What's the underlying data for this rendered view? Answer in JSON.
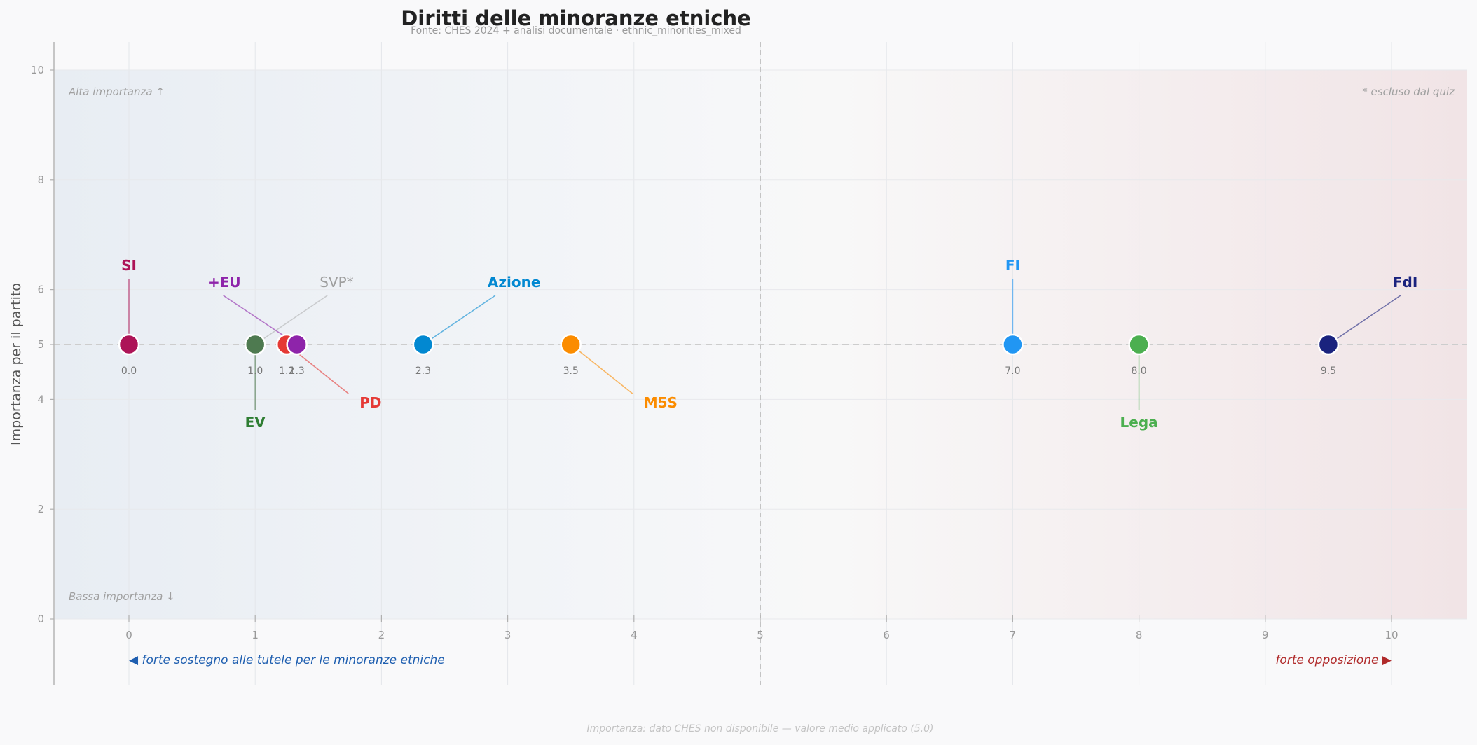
{
  "chart_data": {
    "type": "scatter",
    "title": "Diritti delle minoranze etniche",
    "subtitle": "Fonte: CHES 2024 + analisi documentale  ·  ethnic_minorities_mixed",
    "xlabel": "",
    "ylabel": "Importanza per il partito",
    "xlim": [
      -0.6,
      10.6
    ],
    "ylim": [
      0,
      10
    ],
    "x_ticks": [
      "0",
      "1",
      "2",
      "3",
      "4",
      "5",
      "6",
      "7",
      "8",
      "9",
      "10"
    ],
    "y_ticks": [
      "0",
      "2",
      "4",
      "5",
      "6",
      "8",
      "10"
    ],
    "grid": true,
    "reference_lines": {
      "x": 5,
      "y": 5
    },
    "corner_labels": {
      "top_left": "Alta importanza ↑",
      "bottom_left": "Bassa importanza ↓",
      "top_right": "* escluso dal quiz"
    },
    "axis_hints": {
      "left": "◀  forte sostegno alle tutele per le minoranze etniche",
      "right": "forte opposizione  ▶"
    },
    "footnote": "Importanza: dato CHES non disponibile — valore medio applicato (5.0)",
    "colors": {
      "left_region": "#e8edf3",
      "right_region": "#f1e4e6",
      "accent_left": "#1f5fb0",
      "accent_right": "#b02a2a"
    },
    "points": [
      {
        "name": "SI",
        "x": 0.0,
        "y": 5,
        "value_label": "0.0",
        "color": "#ad1457",
        "label_pos": "above"
      },
      {
        "name": "EV",
        "x": 1.0,
        "y": 5,
        "value_label": "1.0",
        "color": "#4e7a50",
        "label_color": "#2e7d32",
        "label_pos": "below"
      },
      {
        "name": "PD",
        "x": 1.25,
        "y": 5,
        "value_label": "1.2",
        "color": "#e53935",
        "label_pos": "lower-right"
      },
      {
        "name": "+EU",
        "x": 1.33,
        "y": 5,
        "value_label": "1.3",
        "color": "#8e24aa",
        "label_pos": "upper-left"
      },
      {
        "name": "SVP*",
        "x": 1.0,
        "y": 5,
        "value_label": "",
        "color": "#9e9e9e",
        "label_pos": "upper-right",
        "excluded": true
      },
      {
        "name": "Azione",
        "x": 2.33,
        "y": 5,
        "value_label": "2.3",
        "color": "#0288d1",
        "label_pos": "upper-right"
      },
      {
        "name": "M5S",
        "x": 3.5,
        "y": 5,
        "value_label": "3.5",
        "color": "#fb8c00",
        "label_pos": "lower-right"
      },
      {
        "name": "FI",
        "x": 7.0,
        "y": 5,
        "value_label": "7.0",
        "color": "#2196f3",
        "label_pos": "above"
      },
      {
        "name": "Lega",
        "x": 8.0,
        "y": 5,
        "value_label": "8.0",
        "color": "#4caf50",
        "label_pos": "below"
      },
      {
        "name": "FdI",
        "x": 9.5,
        "y": 5,
        "value_label": "9.5",
        "color": "#1a237e",
        "label_pos": "upper-right"
      }
    ]
  }
}
